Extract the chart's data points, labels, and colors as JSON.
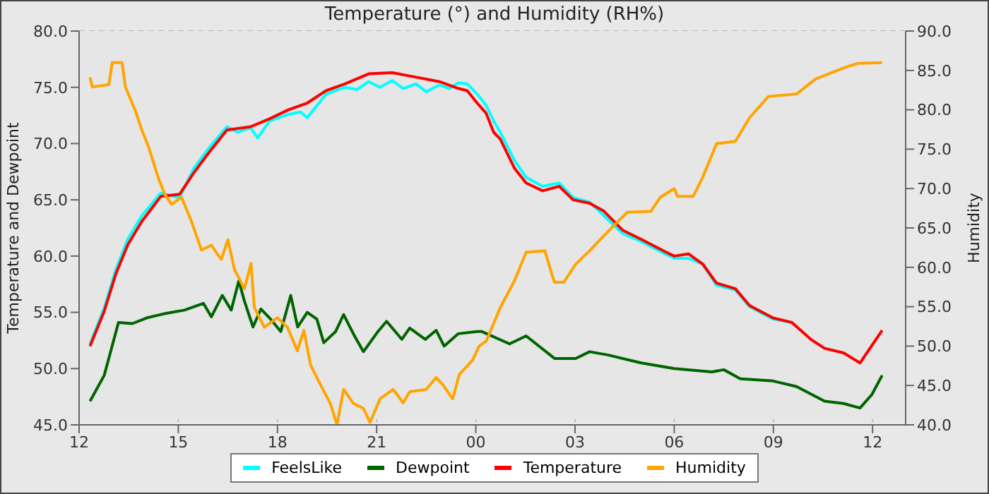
{
  "chart_data": {
    "type": "line",
    "title": "Temperature (°) and Humidity (RH%)",
    "ylabel": "Temperature and Dewpoint",
    "y2label": "Humidity",
    "xlim": [
      12,
      37
    ],
    "xticks": [
      {
        "value": 12,
        "label": "12"
      },
      {
        "value": 15,
        "label": "15"
      },
      {
        "value": 18,
        "label": "18"
      },
      {
        "value": 21,
        "label": "21"
      },
      {
        "value": 24,
        "label": "00"
      },
      {
        "value": 27,
        "label": "03"
      },
      {
        "value": 30,
        "label": "06"
      },
      {
        "value": 33,
        "label": "09"
      },
      {
        "value": 36,
        "label": "12"
      }
    ],
    "ylim": [
      45,
      80
    ],
    "yticks": [
      {
        "value": 45,
        "label": "45.0"
      },
      {
        "value": 50,
        "label": "50.0"
      },
      {
        "value": 55,
        "label": "55.0"
      },
      {
        "value": 60,
        "label": "60.0"
      },
      {
        "value": 65,
        "label": "65.0"
      },
      {
        "value": 70,
        "label": "70.0"
      },
      {
        "value": 75,
        "label": "75.0"
      },
      {
        "value": 80,
        "label": "80.0"
      }
    ],
    "y2lim": [
      40,
      90
    ],
    "y2ticks": [
      {
        "value": 40,
        "label": "40.0"
      },
      {
        "value": 45,
        "label": "45.0"
      },
      {
        "value": 50,
        "label": "50.0"
      },
      {
        "value": 55,
        "label": "55.0"
      },
      {
        "value": 60,
        "label": "60.0"
      },
      {
        "value": 65,
        "label": "65.0"
      },
      {
        "value": 70,
        "label": "70.0"
      },
      {
        "value": 75,
        "label": "75.0"
      },
      {
        "value": 80,
        "label": "80.0"
      },
      {
        "value": 85,
        "label": "85.0"
      },
      {
        "value": 90,
        "label": "90.0"
      }
    ],
    "grid": true,
    "legend": "bottom",
    "marker": "none",
    "line_style": "solid",
    "series": [
      {
        "name": "FeelsLike",
        "color": "#00ffff",
        "x": [
          12.33,
          12.76,
          13.11,
          13.47,
          13.9,
          14.47,
          15.04,
          15.47,
          15.9,
          16.47,
          16.8,
          17.19,
          17.4,
          17.76,
          18.33,
          18.7,
          18.9,
          19.47,
          20.04,
          20.4,
          20.76,
          21.1,
          21.47,
          21.8,
          22.19,
          22.5,
          22.9,
          23.2,
          23.47,
          23.74,
          24.04,
          24.31,
          24.54,
          24.74,
          25.17,
          25.52,
          26.02,
          26.52,
          26.94,
          27.44,
          27.87,
          28.44,
          29.0,
          29.72,
          30.0,
          30.43,
          30.86,
          31.28,
          31.85,
          32.28,
          32.99,
          33.56
        ],
        "values": [
          52.2,
          55.4,
          58.8,
          61.5,
          63.6,
          65.6,
          65.2,
          67.8,
          69.5,
          71.5,
          71.0,
          71.4,
          70.5,
          72.0,
          72.6,
          72.8,
          72.3,
          74.4,
          75.0,
          74.8,
          75.5,
          75.0,
          75.6,
          74.9,
          75.3,
          74.6,
          75.2,
          74.9,
          75.4,
          75.3,
          74.4,
          73.4,
          72.0,
          71.0,
          68.5,
          67.0,
          66.2,
          66.5,
          65.2,
          64.8,
          63.6,
          62.0,
          61.3,
          60.2,
          59.8,
          59.8,
          59.3,
          57.4,
          57.0,
          55.5,
          54.4,
          54.1
        ]
      },
      {
        "name": "Dewpoint",
        "color": "#006400",
        "x": [
          12.33,
          12.76,
          13.19,
          13.61,
          14.04,
          14.61,
          15.19,
          15.76,
          16.0,
          16.33,
          16.6,
          16.83,
          17.0,
          17.26,
          17.5,
          17.76,
          18.1,
          18.4,
          18.61,
          18.9,
          19.19,
          19.4,
          19.76,
          20.0,
          20.33,
          20.6,
          21.04,
          21.3,
          21.76,
          22.0,
          22.47,
          22.8,
          23.04,
          23.47,
          24.04,
          24.17,
          25.02,
          25.52,
          26.38,
          27.02,
          27.44,
          28.01,
          29.0,
          30.0,
          31.14,
          31.5,
          32.0,
          32.99,
          33.7,
          34.55,
          35.12,
          35.62,
          35.98,
          36.29
        ],
        "values": [
          47.1,
          49.4,
          54.1,
          54.0,
          54.5,
          54.9,
          55.2,
          55.8,
          54.6,
          56.5,
          55.2,
          57.8,
          56.0,
          53.7,
          55.3,
          54.5,
          53.3,
          56.5,
          53.7,
          55.0,
          54.4,
          52.3,
          53.3,
          54.8,
          52.9,
          51.5,
          53.3,
          54.2,
          52.6,
          53.6,
          52.6,
          53.4,
          52.0,
          53.1,
          53.3,
          53.3,
          52.2,
          52.9,
          50.9,
          50.9,
          51.5,
          51.2,
          50.5,
          50.0,
          49.7,
          49.9,
          49.1,
          48.9,
          48.4,
          47.1,
          46.9,
          46.5,
          47.7,
          49.4
        ]
      },
      {
        "name": "Temperature",
        "color": "#ff0000",
        "x": [
          12.33,
          12.76,
          13.11,
          13.47,
          13.9,
          14.47,
          15.04,
          15.47,
          15.9,
          16.47,
          17.19,
          17.76,
          18.33,
          18.9,
          19.47,
          20.04,
          20.76,
          21.47,
          22.19,
          22.9,
          23.47,
          23.74,
          24.04,
          24.31,
          24.54,
          24.74,
          25.17,
          25.52,
          26.02,
          26.52,
          26.94,
          27.44,
          27.87,
          28.44,
          29.0,
          29.72,
          30.0,
          30.43,
          30.86,
          31.28,
          31.85,
          32.28,
          32.99,
          33.56,
          34.13,
          34.55,
          35.12,
          35.62,
          36.29
        ],
        "values": [
          52.0,
          55.1,
          58.4,
          61.0,
          63.1,
          65.3,
          65.5,
          67.4,
          69.1,
          71.2,
          71.5,
          72.2,
          73.0,
          73.6,
          74.7,
          75.3,
          76.2,
          76.3,
          75.9,
          75.5,
          74.9,
          74.7,
          73.6,
          72.7,
          71.0,
          70.4,
          67.8,
          66.5,
          65.8,
          66.2,
          65.0,
          64.7,
          64.0,
          62.3,
          61.5,
          60.4,
          60.0,
          60.2,
          59.3,
          57.6,
          57.1,
          55.6,
          54.5,
          54.1,
          52.6,
          51.8,
          51.4,
          50.5,
          53.4
        ]
      },
      {
        "name": "Humidity",
        "color": "#ffa500",
        "axis": "y2",
        "x": [
          12.33,
          12.4,
          12.9,
          13.0,
          13.3,
          13.4,
          13.7,
          13.9,
          14.1,
          14.4,
          14.6,
          14.8,
          15.1,
          15.4,
          15.7,
          16.0,
          16.3,
          16.5,
          16.7,
          17.0,
          17.2,
          17.3,
          17.6,
          18.0,
          18.3,
          18.6,
          18.8,
          19.0,
          19.3,
          19.6,
          19.8,
          20.0,
          20.3,
          20.6,
          20.8,
          21.1,
          21.5,
          21.8,
          22.0,
          22.5,
          22.8,
          23.0,
          23.3,
          23.5,
          23.9,
          24.1,
          24.31,
          24.74,
          25.17,
          25.52,
          26.09,
          26.3,
          26.38,
          26.66,
          27.02,
          27.44,
          27.87,
          28.58,
          29.29,
          29.58,
          30.0,
          30.1,
          30.57,
          30.86,
          31.28,
          31.85,
          32.28,
          32.85,
          33.7,
          34.27,
          35.12,
          35.55,
          36.29
        ],
        "values": [
          84.1,
          82.9,
          83.2,
          86.0,
          86.0,
          82.9,
          79.9,
          77.4,
          75.3,
          71.3,
          69.2,
          68.0,
          68.9,
          65.8,
          62.2,
          62.8,
          61.0,
          63.5,
          59.7,
          57.3,
          60.5,
          54.9,
          52.4,
          53.6,
          52.4,
          49.4,
          52.0,
          47.6,
          45.1,
          42.7,
          40.0,
          44.5,
          42.7,
          42.1,
          40.3,
          43.3,
          44.5,
          42.8,
          44.2,
          44.5,
          46.0,
          45.1,
          43.3,
          46.4,
          48.2,
          50.0,
          50.6,
          54.9,
          58.3,
          61.9,
          62.1,
          59.1,
          58.1,
          58.1,
          60.4,
          62.1,
          64.0,
          67.0,
          67.1,
          68.9,
          70.0,
          69.0,
          69.0,
          71.4,
          75.7,
          76.0,
          79.0,
          81.7,
          82.0,
          83.9,
          85.3,
          85.9,
          86.0
        ]
      }
    ]
  }
}
